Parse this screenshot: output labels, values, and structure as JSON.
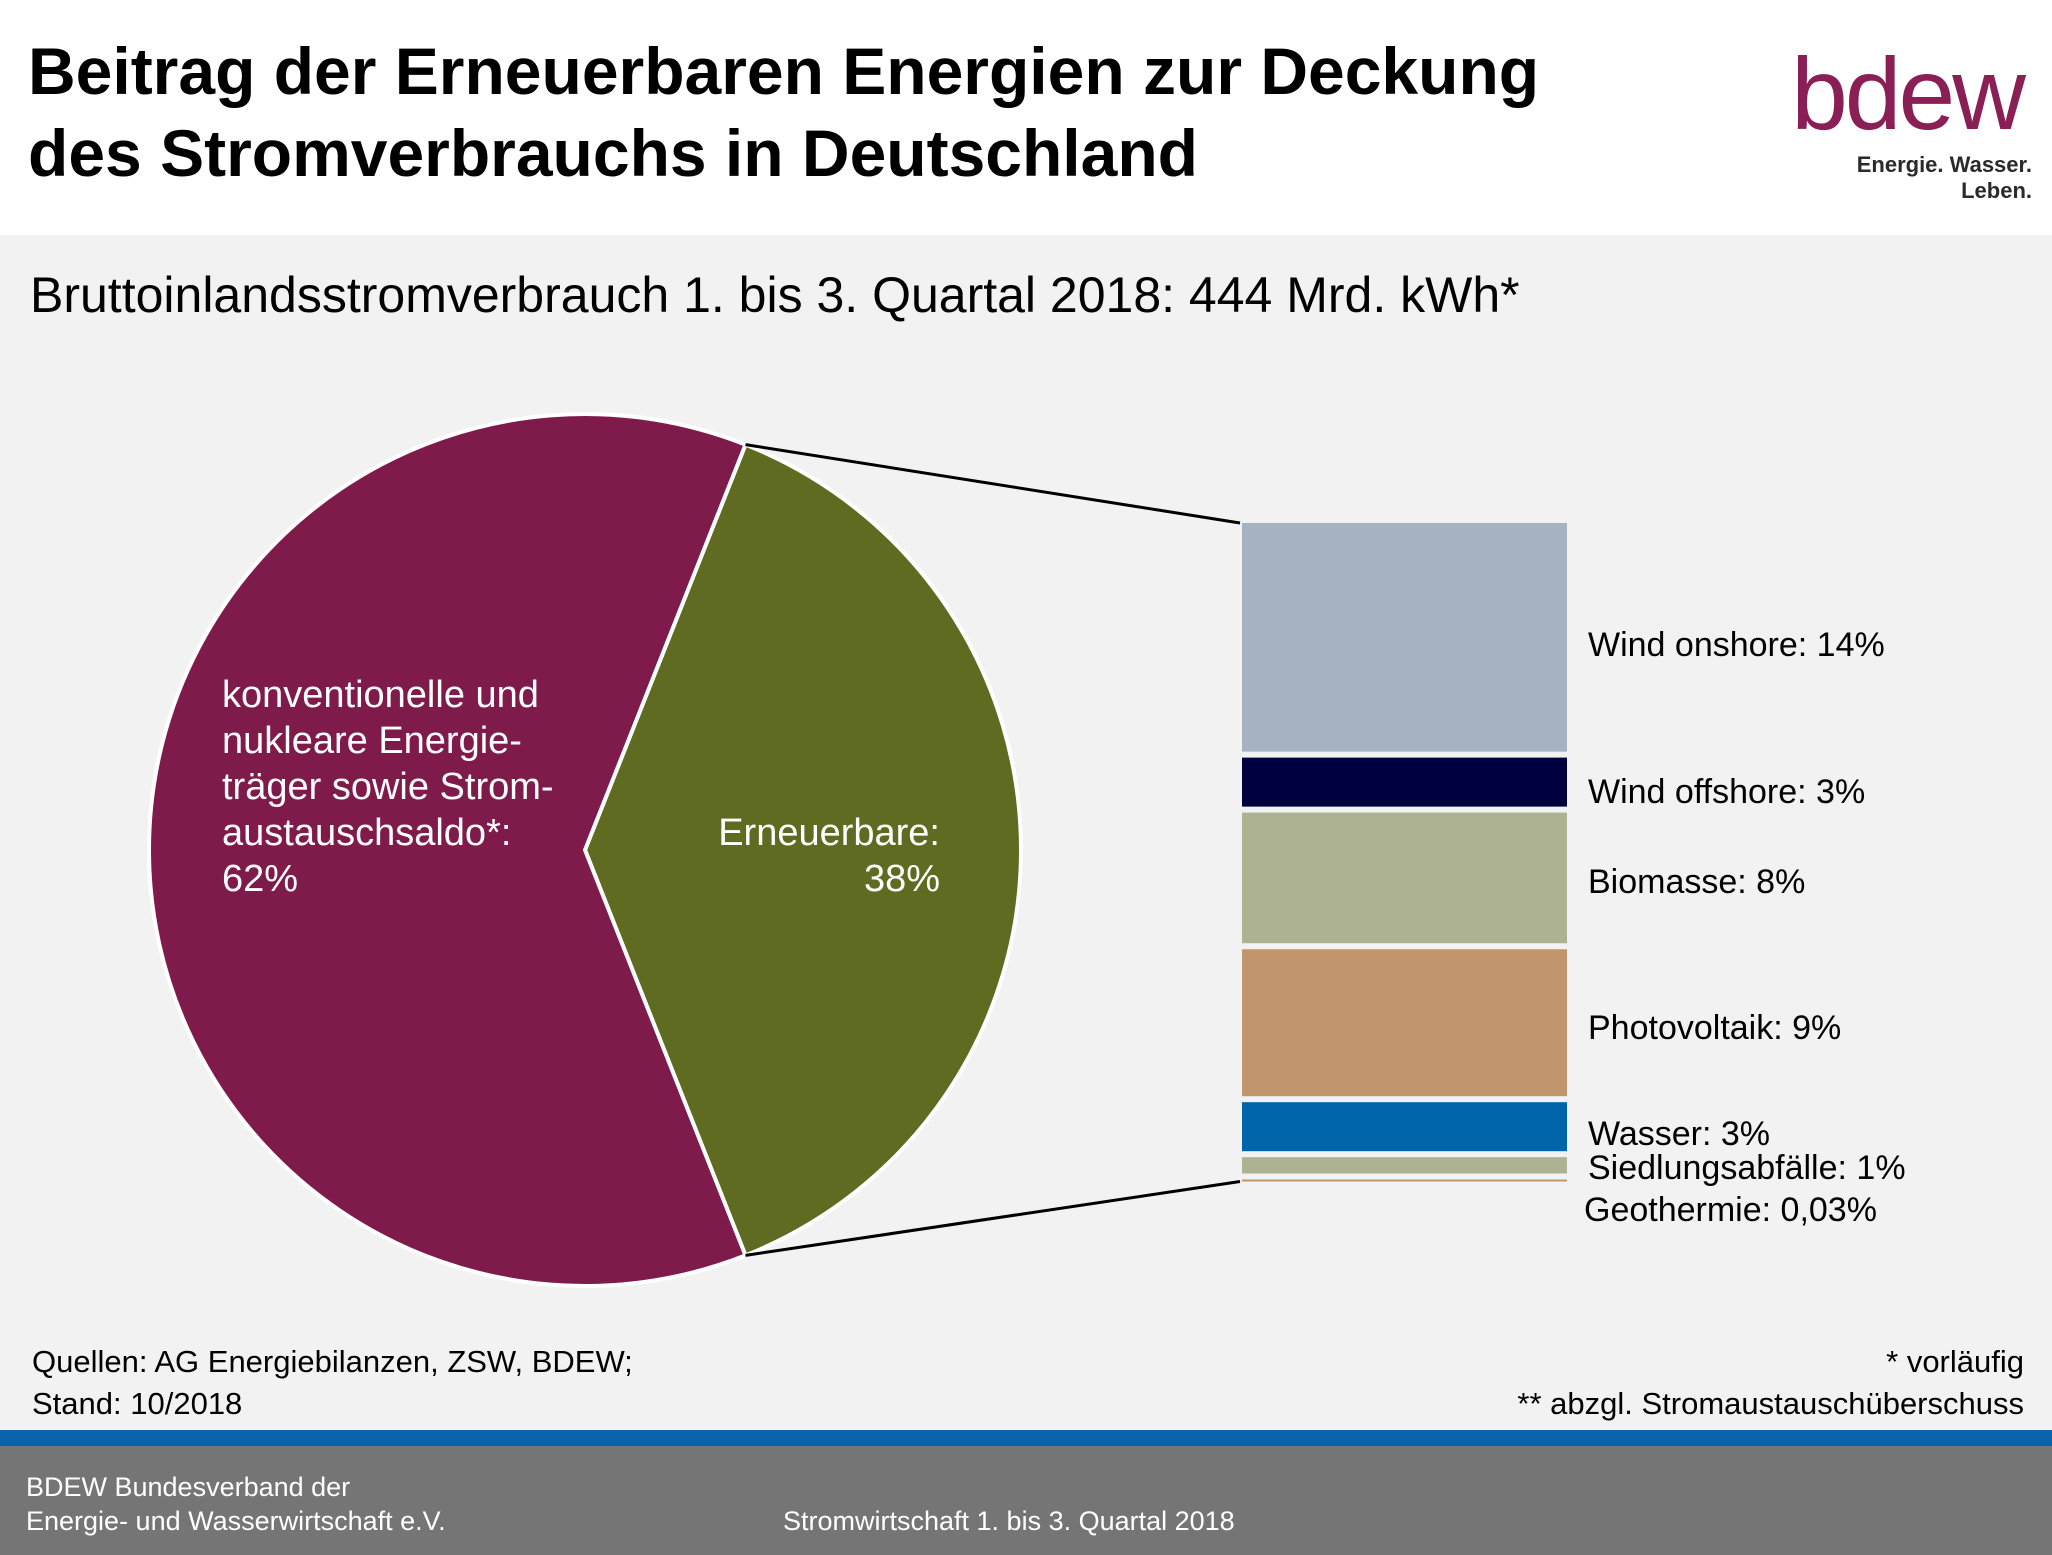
{
  "header": {
    "title_line1": "Beitrag der Erneuerbaren Energien zur Deckung",
    "title_line2": "des Stromverbrauchs in Deutschland",
    "logo_word": "bdew",
    "logo_slogan": "Energie. Wasser. Leben."
  },
  "chart_data": {
    "type": "pie",
    "subtitle": "Bruttoinlandsstromverbrauch 1. bis 3. Quartal 2018: 444 Mrd. kWh*",
    "pie": {
      "slices": [
        {
          "label_line1": "konventionelle und",
          "label_line2": "nukleare Energie-",
          "label_line3": "träger sowie Strom-",
          "label_line4": "austauschsaldo*:",
          "value_label": "62%",
          "value": 62,
          "color": "#7f1b4b"
        },
        {
          "label_line1": "Erneuerbare:",
          "value_label": "38%",
          "value": 38,
          "color": "#5e6b21"
        }
      ]
    },
    "breakdown": {
      "type": "stacked-bar",
      "segments": [
        {
          "label": "Wind onshore:  14%",
          "value": 14,
          "color": "#a6b1c1"
        },
        {
          "label": "Wind offshore:  3%",
          "value": 3,
          "color": "#000040"
        },
        {
          "label": "Biomasse:  8%",
          "value": 8,
          "color": "#adb292"
        },
        {
          "label": "Photovoltaik:  9%",
          "value": 9,
          "color": "#c1966c"
        },
        {
          "label": "Wasser:  3%",
          "value": 3,
          "color": "#0064aa"
        },
        {
          "label": "Siedlungsabfälle:  1%",
          "value": 1,
          "color": "#adb292"
        },
        {
          "label": "Geothermie:  0,03%",
          "value": 0.03,
          "color": "#c1966c"
        }
      ]
    }
  },
  "notes": {
    "sources_line1": "Quellen: AG Energiebilanzen, ZSW, BDEW;",
    "sources_line2": "Stand: 10/2018",
    "footnote1": "* vorläufig",
    "footnote2": "** abzgl. Stromaustauschüberschuss"
  },
  "footer": {
    "org_line1": "BDEW Bundesverband  der",
    "org_line2": "Energie- und Wasserwirtschaft e.V.",
    "center_text": "Stromwirtschaft  1. bis 3. Quartal 2018"
  }
}
